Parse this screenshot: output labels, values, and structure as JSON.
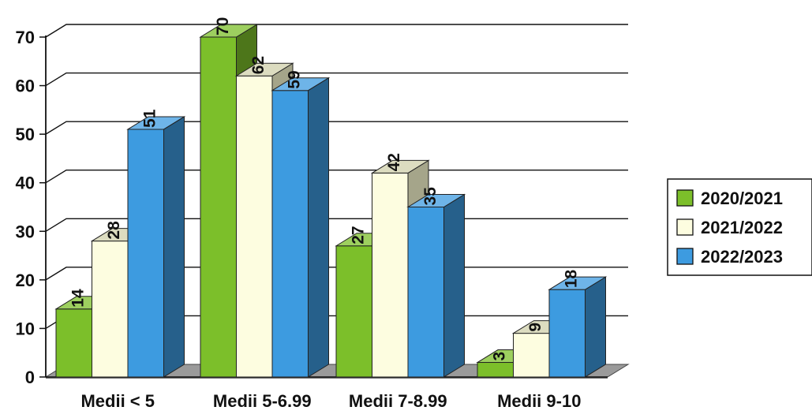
{
  "chart_data": {
    "type": "bar",
    "categories": [
      "Medii < 5",
      "Medii 5-6.99",
      "Medii 7-8.99",
      "Medii 9-10"
    ],
    "series": [
      {
        "name": "2020/2021",
        "values": [
          14,
          70,
          27,
          3
        ],
        "color": "#7cbf2a"
      },
      {
        "name": "2021/2022",
        "values": [
          28,
          62,
          42,
          9
        ],
        "color": "#fdfde0"
      },
      {
        "name": "2022/2023",
        "values": [
          51,
          59,
          35,
          18
        ],
        "color": "#3d9be0"
      }
    ],
    "ylim": [
      0,
      70
    ],
    "yticks": [
      0,
      10,
      20,
      30,
      40,
      50,
      60,
      70
    ],
    "grid": true,
    "legend": "right",
    "three_d": true
  }
}
